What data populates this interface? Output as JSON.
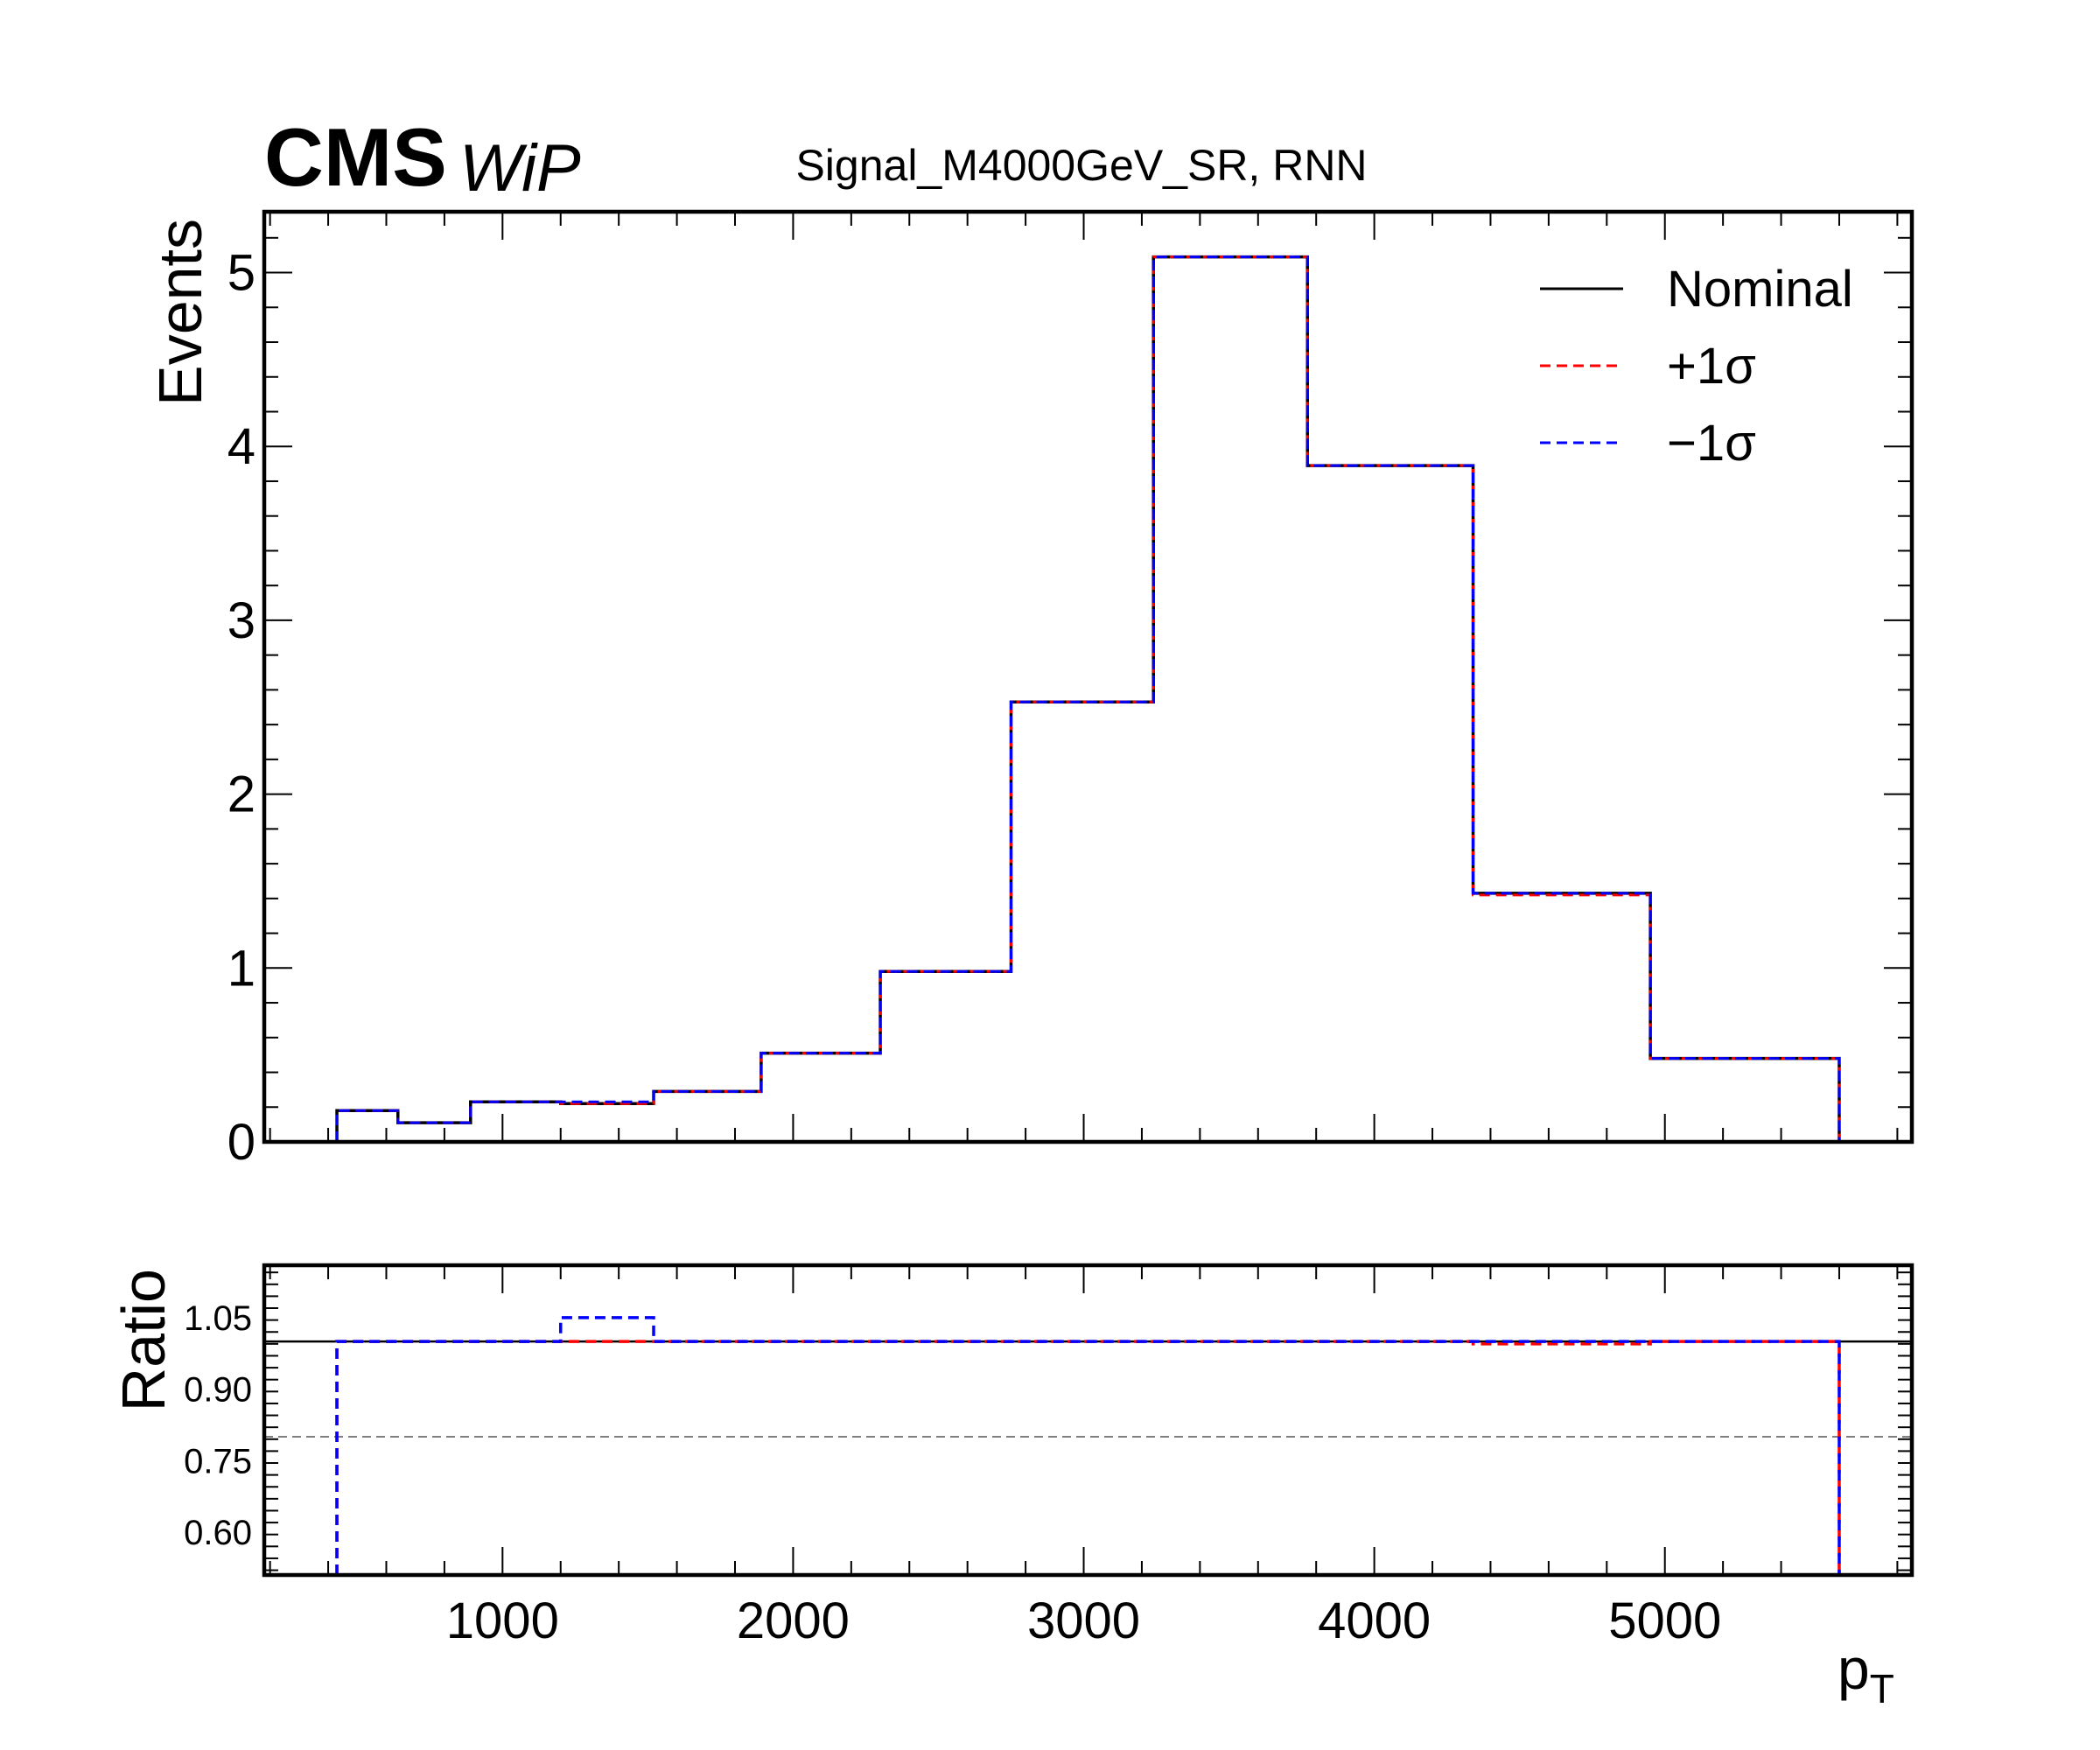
{
  "header": {
    "experiment": "CMS",
    "status": "WiP",
    "title": "Signal_M4000GeV_SR, RNN"
  },
  "chart_data": [
    {
      "type": "line",
      "subtype": "step-histogram",
      "ylabel": "Events",
      "xlim": [
        180,
        5850
      ],
      "ylim": [
        0,
        5.35
      ],
      "yticks": [
        0,
        1,
        2,
        3,
        4,
        5
      ],
      "legend": {
        "placement": "top-right",
        "entries": [
          "Nominal",
          "+1σ",
          "−1σ"
        ]
      },
      "bin_edges": [
        430,
        640,
        890,
        1200,
        1520,
        1890,
        2300,
        2750,
        3240,
        3770,
        4340,
        4950,
        5600
      ],
      "series": [
        {
          "name": "Nominal",
          "color": "#000000",
          "dash": "solid",
          "values": [
            0.18,
            0.11,
            0.23,
            0.22,
            0.29,
            0.51,
            0.98,
            2.53,
            5.09,
            3.89,
            1.43,
            0.48
          ]
        },
        {
          "name": "+1σ",
          "color": "#ff0000",
          "dash": "dashed",
          "values": [
            0.18,
            0.11,
            0.23,
            0.22,
            0.29,
            0.51,
            0.98,
            2.53,
            5.09,
            3.89,
            1.42,
            0.48
          ]
        },
        {
          "name": "−1σ",
          "color": "#0000ff",
          "dash": "dashed",
          "values": [
            0.18,
            0.11,
            0.23,
            0.23,
            0.29,
            0.51,
            0.98,
            2.53,
            5.09,
            3.89,
            1.43,
            0.48
          ]
        }
      ]
    },
    {
      "type": "line",
      "subtype": "ratio-panel",
      "xlabel": "p",
      "xlabel_subscript": "T",
      "ylabel": "Ratio",
      "xlim": [
        180,
        5850
      ],
      "ylim": [
        0.51,
        1.16
      ],
      "yticks": [
        "1.05",
        "0.90",
        "0.75",
        "0.60"
      ],
      "xticks": [
        "1000",
        "2000",
        "3000",
        "4000",
        "5000"
      ],
      "reference_lines": [
        {
          "y": 1.0,
          "color": "#000000",
          "dash": "solid"
        },
        {
          "y": 0.8,
          "color": "#808080",
          "dash": "dashed"
        }
      ],
      "bin_edges": [
        430,
        640,
        890,
        1200,
        1520,
        1890,
        2300,
        2750,
        3240,
        3770,
        4340,
        4950,
        5600
      ],
      "series": [
        {
          "name": "+1σ",
          "color": "#ff0000",
          "dash": "dashed",
          "values": [
            1.0,
            1.0,
            1.0,
            1.0,
            1.0,
            1.0,
            1.0,
            1.0,
            1.0,
            1.0,
            0.995,
            1.0
          ]
        },
        {
          "name": "−1σ",
          "color": "#0000ff",
          "dash": "dashed",
          "values": [
            1.0,
            1.0,
            1.0,
            1.05,
            1.0,
            1.0,
            1.0,
            1.0,
            1.0,
            1.0,
            1.0,
            1.0
          ]
        }
      ]
    }
  ]
}
